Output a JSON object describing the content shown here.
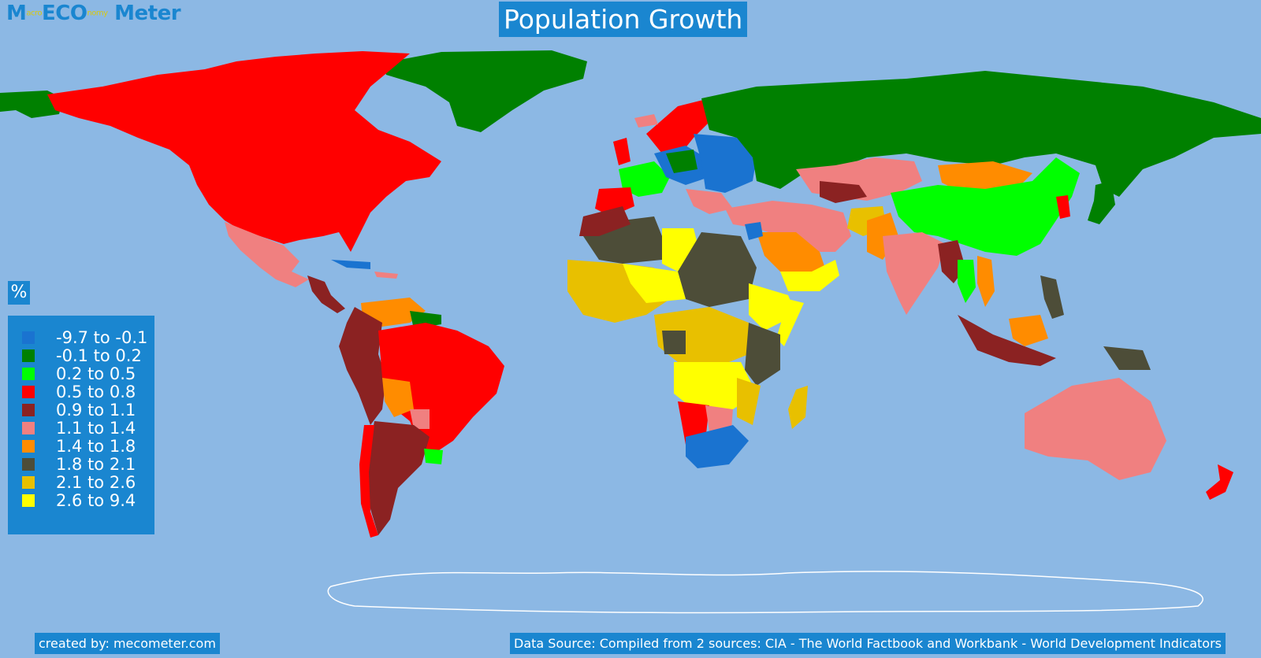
{
  "header": {
    "title": "Population Growth"
  },
  "logo": {
    "part1": "M",
    "sub1": "acro",
    "part2": "ECO",
    "sub2": "nomy",
    "part3": " Meter"
  },
  "legend": {
    "unit": "%",
    "items": [
      {
        "label": "-9.7 to -0.1",
        "color": "#1a73d0"
      },
      {
        "label": "-0.1 to 0.2",
        "color": "#008000"
      },
      {
        "label": "0.2 to 0.5",
        "color": "#00ff00"
      },
      {
        "label": "0.5 to 0.8",
        "color": "#ff0000"
      },
      {
        "label": "0.9 to 1.1",
        "color": "#8b2222"
      },
      {
        "label": "1.1 to 1.4",
        "color": "#f08080"
      },
      {
        "label": "1.4 to 1.8",
        "color": "#ff8c00"
      },
      {
        "label": "1.8 to 2.1",
        "color": "#4d4d38"
      },
      {
        "label": "2.1 to 2.6",
        "color": "#e8c000"
      },
      {
        "label": "2.6 to 9.4",
        "color": "#ffff00"
      }
    ]
  },
  "footer": {
    "credit": "created by: mecometer.com",
    "source": "Data Source: Compiled from 2 sources: CIA - The World Factbook and Workbank - World Development Indicators"
  }
}
